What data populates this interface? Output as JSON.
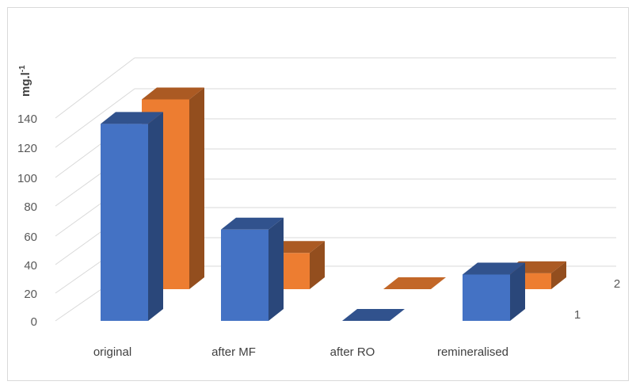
{
  "chart_data": {
    "type": "bar",
    "style": "3d-column",
    "categories": [
      "original",
      "after MF",
      "after RO",
      "remineralised"
    ],
    "series": [
      {
        "name": "1",
        "values": [
          136,
          63,
          0,
          32
        ],
        "color": "#4472c4"
      },
      {
        "name": "2",
        "values": [
          131,
          25,
          0,
          11
        ],
        "color": "#ed7d31"
      }
    ],
    "ylabel": "mg.l",
    "ylabel_sup": "-1",
    "yticks": [
      "0",
      "20",
      "40",
      "60",
      "80",
      "100",
      "120",
      "140"
    ],
    "ylim": [
      0,
      160
    ],
    "grid": true,
    "legend": "none"
  }
}
